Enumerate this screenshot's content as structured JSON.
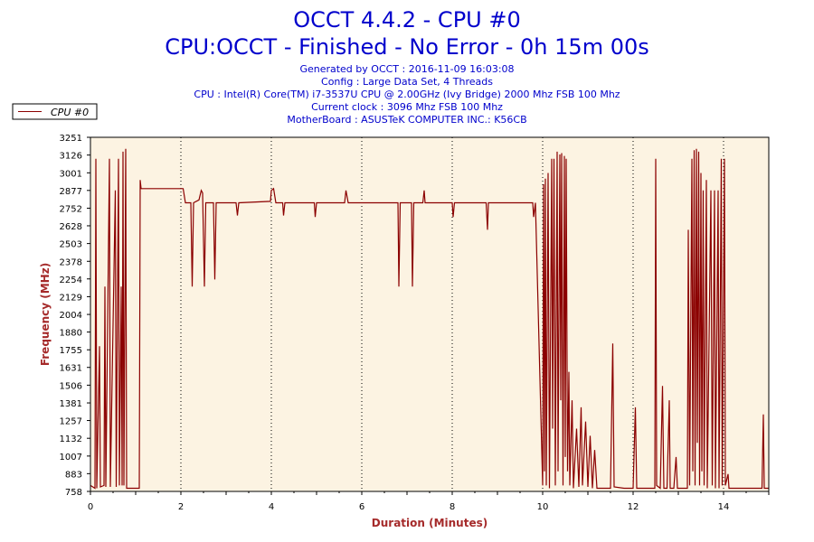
{
  "colors": {
    "title": "#0000cc",
    "series": "#8b0000",
    "axis_label": "#a52a2a",
    "plot_bg": "#fcf3e2",
    "grid": "#000000",
    "frame": "#000000"
  },
  "header": {
    "title": "OCCT 4.4.2 - CPU #0",
    "subtitle": "CPU:OCCT - Finished - No Error - 0h 15m 00s",
    "info": [
      "Generated by OCCT : 2016-11-09 16:03:08",
      "Config : Large Data Set, 4 Threads",
      "CPU : Intel(R) Core(TM) i7-3537U CPU @ 2.00GHz (Ivy Bridge) 2000 Mhz FSB 100 Mhz",
      "Current clock : 3096 Mhz FSB 100 Mhz",
      "MotherBoard : ASUSTeK COMPUTER INC.: K56CB"
    ]
  },
  "chart_data": {
    "type": "line",
    "title": "OCCT 4.4.2 - CPU #0",
    "subtitle": "CPU:OCCT - Finished - No Error - 0h 15m 00s",
    "xlabel": "Duration (Minutes)",
    "ylabel": "Frequency (MHz)",
    "xlim": [
      0,
      15
    ],
    "ylim": [
      758,
      3251
    ],
    "x_ticks": [
      0,
      2,
      4,
      6,
      8,
      10,
      12,
      14
    ],
    "y_ticks": [
      758,
      883,
      1007,
      1132,
      1257,
      1381,
      1506,
      1631,
      1755,
      1880,
      2004,
      2129,
      2254,
      2378,
      2503,
      2628,
      2752,
      2877,
      3001,
      3126,
      3251
    ],
    "grid": "vertical dotted at major x ticks",
    "legend": {
      "position": "top-left",
      "entries": [
        "CPU #0"
      ]
    },
    "series": [
      {
        "name": "CPU #0",
        "points": [
          [
            0.0,
            800
          ],
          [
            0.1,
            780
          ],
          [
            0.12,
            3100
          ],
          [
            0.14,
            780
          ],
          [
            0.2,
            1780
          ],
          [
            0.22,
            790
          ],
          [
            0.3,
            800
          ],
          [
            0.32,
            2200
          ],
          [
            0.34,
            790
          ],
          [
            0.42,
            3100
          ],
          [
            0.44,
            790
          ],
          [
            0.55,
            2877
          ],
          [
            0.57,
            790
          ],
          [
            0.62,
            3100
          ],
          [
            0.64,
            800
          ],
          [
            0.68,
            2200
          ],
          [
            0.7,
            800
          ],
          [
            0.72,
            3150
          ],
          [
            0.74,
            800
          ],
          [
            0.78,
            3170
          ],
          [
            0.8,
            780
          ],
          [
            0.84,
            780
          ],
          [
            0.87,
            780
          ],
          [
            1.08,
            780
          ],
          [
            1.1,
            2950
          ],
          [
            1.12,
            2890
          ],
          [
            1.98,
            2890
          ],
          [
            2.05,
            2890
          ],
          [
            2.1,
            2790
          ],
          [
            2.22,
            2790
          ],
          [
            2.25,
            2200
          ],
          [
            2.28,
            2790
          ],
          [
            2.4,
            2810
          ],
          [
            2.45,
            2877
          ],
          [
            2.48,
            2860
          ],
          [
            2.52,
            2200
          ],
          [
            2.55,
            2790
          ],
          [
            2.72,
            2790
          ],
          [
            2.75,
            2250
          ],
          [
            2.78,
            2790
          ],
          [
            3.22,
            2790
          ],
          [
            3.25,
            2700
          ],
          [
            3.28,
            2790
          ],
          [
            3.98,
            2800
          ],
          [
            4.0,
            2877
          ],
          [
            4.05,
            2890
          ],
          [
            4.1,
            2790
          ],
          [
            4.25,
            2790
          ],
          [
            4.27,
            2700
          ],
          [
            4.3,
            2790
          ],
          [
            4.95,
            2790
          ],
          [
            4.97,
            2690
          ],
          [
            5.0,
            2790
          ],
          [
            5.62,
            2790
          ],
          [
            5.65,
            2877
          ],
          [
            5.7,
            2790
          ],
          [
            6.8,
            2790
          ],
          [
            6.82,
            2200
          ],
          [
            6.85,
            2790
          ],
          [
            7.1,
            2790
          ],
          [
            7.12,
            2200
          ],
          [
            7.15,
            2790
          ],
          [
            7.35,
            2790
          ],
          [
            7.38,
            2877
          ],
          [
            7.4,
            2790
          ],
          [
            8.0,
            2790
          ],
          [
            8.02,
            2690
          ],
          [
            8.05,
            2790
          ],
          [
            8.75,
            2790
          ],
          [
            8.78,
            2600
          ],
          [
            8.8,
            2790
          ],
          [
            9.78,
            2790
          ],
          [
            9.8,
            2690
          ],
          [
            9.84,
            2790
          ],
          [
            10.0,
            800
          ],
          [
            10.02,
            2920
          ],
          [
            10.04,
            900
          ],
          [
            10.06,
            2960
          ],
          [
            10.08,
            800
          ],
          [
            10.12,
            3000
          ],
          [
            10.15,
            780
          ],
          [
            10.2,
            3100
          ],
          [
            10.22,
            1200
          ],
          [
            10.25,
            3100
          ],
          [
            10.28,
            800
          ],
          [
            10.32,
            3150
          ],
          [
            10.34,
            900
          ],
          [
            10.38,
            3130
          ],
          [
            10.4,
            1400
          ],
          [
            10.42,
            3140
          ],
          [
            10.45,
            800
          ],
          [
            10.48,
            3120
          ],
          [
            10.5,
            1000
          ],
          [
            10.52,
            3100
          ],
          [
            10.55,
            900
          ],
          [
            10.58,
            1600
          ],
          [
            10.6,
            800
          ],
          [
            10.65,
            1400
          ],
          [
            10.68,
            780
          ],
          [
            10.75,
            1200
          ],
          [
            10.8,
            790
          ],
          [
            10.85,
            1350
          ],
          [
            10.88,
            800
          ],
          [
            10.95,
            1250
          ],
          [
            11.0,
            790
          ],
          [
            11.05,
            1150
          ],
          [
            11.1,
            780
          ],
          [
            11.15,
            1050
          ],
          [
            11.2,
            780
          ],
          [
            11.5,
            780
          ],
          [
            11.55,
            1800
          ],
          [
            11.58,
            790
          ],
          [
            11.8,
            780
          ],
          [
            12.0,
            780
          ],
          [
            12.05,
            1350
          ],
          [
            12.08,
            780
          ],
          [
            12.48,
            780
          ],
          [
            12.5,
            3100
          ],
          [
            12.52,
            800
          ],
          [
            12.6,
            780
          ],
          [
            12.65,
            1500
          ],
          [
            12.68,
            780
          ],
          [
            12.75,
            780
          ],
          [
            12.8,
            1400
          ],
          [
            12.82,
            780
          ],
          [
            12.9,
            780
          ],
          [
            12.95,
            1000
          ],
          [
            12.98,
            780
          ],
          [
            13.2,
            780
          ],
          [
            13.22,
            2600
          ],
          [
            13.25,
            800
          ],
          [
            13.3,
            3100
          ],
          [
            13.32,
            900
          ],
          [
            13.35,
            3160
          ],
          [
            13.37,
            800
          ],
          [
            13.4,
            3170
          ],
          [
            13.42,
            1100
          ],
          [
            13.45,
            3150
          ],
          [
            13.47,
            800
          ],
          [
            13.5,
            3000
          ],
          [
            13.52,
            900
          ],
          [
            13.55,
            2877
          ],
          [
            13.57,
            800
          ],
          [
            13.62,
            2950
          ],
          [
            13.64,
            780
          ],
          [
            13.72,
            2877
          ],
          [
            13.75,
            800
          ],
          [
            13.8,
            2877
          ],
          [
            13.82,
            780
          ],
          [
            13.88,
            2877
          ],
          [
            13.9,
            780
          ],
          [
            13.95,
            3100
          ],
          [
            13.97,
            800
          ],
          [
            14.02,
            3100
          ],
          [
            14.04,
            800
          ],
          [
            14.1,
            880
          ],
          [
            14.12,
            780
          ],
          [
            14.85,
            780
          ],
          [
            14.88,
            1300
          ],
          [
            14.9,
            780
          ],
          [
            15.0,
            780
          ]
        ]
      }
    ]
  }
}
